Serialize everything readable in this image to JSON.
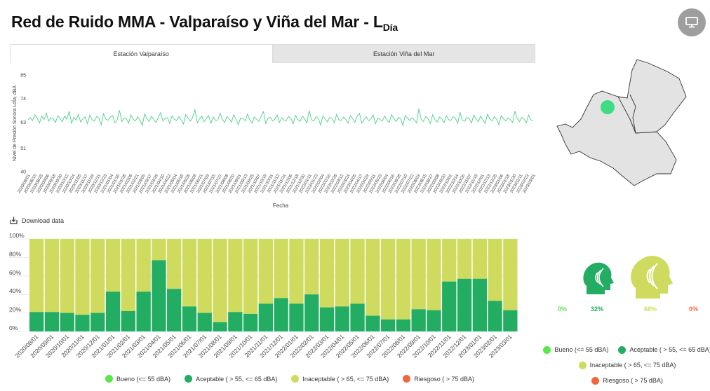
{
  "header": {
    "title_main": "Red de Ruido MMA - Valparaíso y Viña del Mar - L",
    "title_sub": "Día"
  },
  "tabs": [
    {
      "label": "Estación Valparaíso",
      "active": true
    },
    {
      "label": "Estación Viña del Mar",
      "active": false
    }
  ],
  "download_label": "Download data",
  "colors": {
    "bueno": "#59e84a",
    "aceptable": "#22ad62",
    "inaceptable": "#cedb5f",
    "riesgoso": "#f0673f",
    "line": "#4dd08c",
    "map_fill": "#e3e3e3",
    "map_stroke": "#333333",
    "station": "#3ddc85"
  },
  "icons": {
    "fullscreen": "monitor-icon",
    "download": "download-icon"
  },
  "chart_data": [
    {
      "type": "line",
      "title": "",
      "xlabel": "Fecha",
      "ylabel": "Nivel de Presión Sonora LdÍa, dBA",
      "ylim": [
        40,
        85
      ],
      "yticks": [
        40,
        51,
        63,
        74,
        85
      ],
      "x_start": "2020/08/01",
      "x_end": "2023/03/01",
      "x_ticks": [
        "2020/08/01",
        "2020/08/13",
        "2020/08/25",
        "2020/09/06",
        "2020/09/18",
        "2020/09/30",
        "2020/10/12",
        "2020/10/24",
        "2020/11/05",
        "2020/11/17",
        "2020/11/29",
        "2020/12/11",
        "2020/12/23",
        "2021/01/04",
        "2021/01/16",
        "2021/01/28",
        "2021/02/09",
        "2021/02/21",
        "2021/03/05",
        "2021/03/17",
        "2021/03/29",
        "2021/04/10",
        "2021/04/22",
        "2021/05/04",
        "2021/05/16",
        "2021/05/28",
        "2021/06/09",
        "2021/06/21",
        "2021/07/03",
        "2021/07/15",
        "2021/07/27",
        "2021/08/08",
        "2021/08/20",
        "2021/09/01",
        "2021/09/13",
        "2021/09/25",
        "2021/10/07",
        "2021/10/19",
        "2021/10/31",
        "2021/11/12",
        "2021/11/24",
        "2021/12/06",
        "2021/12/18",
        "2021/12/30",
        "2022/01/11",
        "2022/01/23",
        "2022/02/04",
        "2022/02/16",
        "2022/02/28",
        "2022/03/12",
        "2022/03/24",
        "2022/04/05",
        "2022/04/17",
        "2022/04/29",
        "2022/05/11",
        "2022/05/23",
        "2022/06/04",
        "2022/06/16",
        "2022/06/28",
        "2022/07/10",
        "2022/07/22",
        "2022/08/03",
        "2022/08/15",
        "2022/08/27",
        "2022/09/08",
        "2022/09/20",
        "2022/10/02",
        "2022/10/14",
        "2022/10/26",
        "2022/11/07",
        "2022/11/19",
        "2022/12/01",
        "2022/12/13",
        "2022/12/25",
        "2023/01/06",
        "2023/01/18",
        "2023/01/30",
        "2023/02/11",
        "2023/02/23",
        "2023/03/01"
      ],
      "series": [
        {
          "values": [
            64.1,
            65.2,
            63.8,
            66.5,
            64.9,
            62.7,
            65.8,
            64.3,
            67.2,
            63.5,
            65.1,
            64.6,
            62.9,
            66.1,
            64.8,
            63.2,
            65.9,
            64.4,
            68.1,
            62.5,
            65.3,
            64.0,
            66.7,
            63.1,
            64.7,
            65.5,
            62.3,
            66.3,
            64.2,
            63.6,
            65.7,
            64.9,
            61.8,
            67.0,
            64.5,
            63.9,
            65.4,
            66.2,
            62.8,
            64.1,
            68.6,
            63.3,
            65.0,
            64.7,
            62.6,
            66.4,
            64.3,
            63.7,
            65.6,
            64.0,
            61.5,
            66.9,
            64.6,
            63.4,
            65.8,
            64.2,
            62.9,
            65.3,
            67.5,
            63.6,
            64.8,
            65.1,
            62.4,
            66.0,
            64.4,
            63.8,
            65.7,
            64.1,
            62.2,
            66.6,
            64.9,
            63.5,
            65.2,
            69.0,
            62.7,
            64.5,
            65.9,
            63.2,
            64.7,
            66.1,
            62.5,
            65.4,
            64.0,
            63.9,
            67.3,
            64.3,
            62.8,
            65.6,
            64.6,
            63.1,
            66.5,
            64.2,
            61.9,
            65.0,
            64.8,
            63.7,
            66.8,
            64.1,
            62.6,
            65.5,
            64.4,
            63.3,
            65.8,
            67.9,
            62.4,
            64.9,
            65.3,
            63.6,
            64.5,
            66.3,
            62.9,
            65.1,
            64.0,
            63.8,
            65.7,
            64.7,
            62.3,
            66.2,
            64.3,
            63.4,
            65.9,
            64.6,
            62.7,
            68.4,
            64.2,
            63.5,
            65.6,
            64.8,
            61.7,
            66.0,
            64.5,
            63.2,
            65.2,
            64.9,
            62.8,
            66.7,
            64.1,
            63.9,
            65.4,
            64.4,
            62.5,
            66.1,
            64.7,
            63.0,
            65.8,
            67.1,
            62.6,
            64.3,
            65.5,
            63.7,
            64.6,
            66.4,
            62.4,
            65.0,
            64.2,
            63.6,
            65.9,
            64.0,
            62.9,
            66.6,
            64.8,
            63.3,
            65.3,
            64.5,
            61.6,
            66.2,
            64.9,
            63.8,
            65.1,
            64.1,
            62.7,
            69.3,
            64.4,
            63.4,
            65.7,
            64.6,
            62.3,
            66.5,
            64.3,
            63.1,
            65.4,
            64.7,
            62.8,
            66.0,
            64.2,
            63.9,
            65.6,
            64.8,
            62.5,
            67.7,
            64.0,
            63.5,
            65.2,
            64.9,
            62.6,
            66.3,
            64.5,
            63.2,
            65.8,
            64.1,
            62.4,
            66.8,
            64.6,
            63.7,
            65.5,
            64.3,
            61.9,
            66.1,
            64.7,
            63.6,
            65.0,
            64.2,
            62.9,
            68.2,
            64.8,
            63.3,
            65.3,
            64.4,
            62.7,
            66.4,
            64.1,
            63.8
          ]
        }
      ]
    },
    {
      "type": "bar",
      "stacked": true,
      "title": "",
      "ylim": [
        0,
        100
      ],
      "yticks": [
        "0%",
        "20%",
        "40%",
        "60%",
        "80%",
        "100%"
      ],
      "categories": [
        "2020/08/01",
        "2020/09/01",
        "2020/10/01",
        "2020/11/01",
        "2020/12/01",
        "2021/01/01",
        "2021/02/01",
        "2021/03/01",
        "2021/04/01",
        "2021/05/01",
        "2021/06/01",
        "2021/07/01",
        "2021/08/01",
        "2021/09/01",
        "2021/10/01",
        "2021/11/01",
        "2021/12/01",
        "2022/01/01",
        "2022/02/01",
        "2022/03/01",
        "2022/04/01",
        "2022/05/01",
        "2022/06/01",
        "2022/07/01",
        "2022/08/01",
        "2022/09/01",
        "2022/10/01",
        "2022/11/01",
        "2022/12/01",
        "2023/01/01",
        "2023/02/01",
        "2023/03/01"
      ],
      "series": [
        {
          "name": "Aceptable ( > 55, <= 65 dBA)",
          "values": [
            21,
            21,
            20,
            18,
            20,
            43,
            22,
            43,
            77,
            46,
            27,
            20,
            10,
            21,
            19,
            30,
            36,
            30,
            40,
            26,
            27,
            30,
            17,
            13,
            13,
            24,
            23,
            54,
            57,
            57,
            33,
            23
          ]
        },
        {
          "name": "Inaceptable ( > 65, <= 75 dBA)",
          "values": [
            79,
            79,
            80,
            82,
            80,
            57,
            78,
            57,
            23,
            54,
            73,
            80,
            90,
            79,
            81,
            70,
            64,
            70,
            60,
            74,
            73,
            70,
            83,
            87,
            87,
            76,
            77,
            46,
            43,
            43,
            67,
            77
          ]
        }
      ]
    }
  ],
  "legend": {
    "bueno": "Bueno (<= 55 dBA)",
    "aceptable": "Aceptable ( > 55, <= 65 dBA)",
    "inaceptable": "Inaceptable ( > 65, <= 75 dBA)",
    "riesgoso": "Riesgoso ( > 75 dBA)"
  },
  "legend_right": {
    "bueno": "Bueno (<= 55 dBA)",
    "aceptable": "Aceptable ( > 55, <= 65 dBA)",
    "inaceptable": "Inaceptable ( > 65, <= 75 dBA)",
    "riesgoso": "Riesgoso ( > 75 dBA)"
  },
  "summary": {
    "bueno_pct": "0%",
    "aceptable_pct": "32%",
    "inaceptable_pct": "68%",
    "riesgoso_pct": "0%",
    "aceptable_value": 32,
    "inaceptable_value": 68
  }
}
